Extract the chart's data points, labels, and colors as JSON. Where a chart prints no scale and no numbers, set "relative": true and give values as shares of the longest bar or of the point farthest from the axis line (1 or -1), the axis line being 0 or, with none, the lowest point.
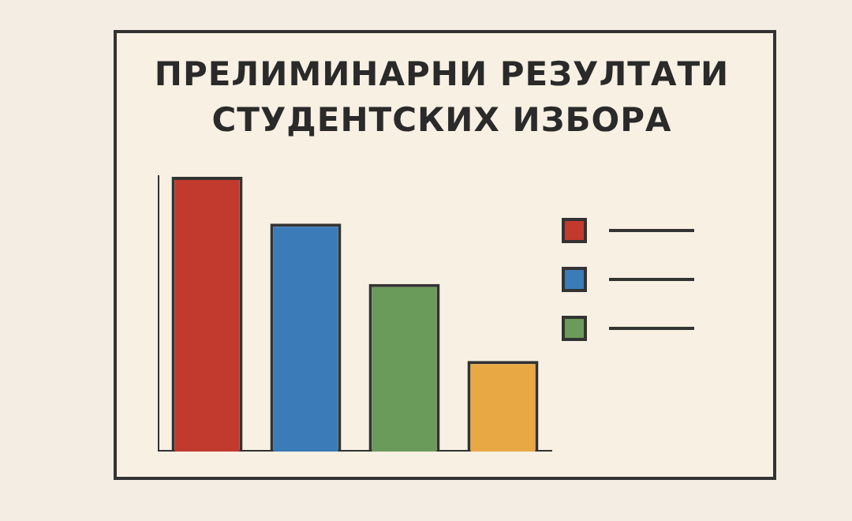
{
  "chart_data": {
    "type": "bar",
    "title": "ПРЕЛИМИНАРНИ РЕЗУЛТАТИ СТУДЕНТСКИХ ИЗБОРА",
    "categories": [
      null,
      null,
      null,
      null
    ],
    "values": [
      1,
      0.83,
      0.61,
      0.33
    ],
    "colors": [
      "#c2392e",
      "#3b7bb8",
      "#6b9b5a",
      "#e8a843"
    ],
    "relative": true,
    "grid": false,
    "legend": false
  }
}
